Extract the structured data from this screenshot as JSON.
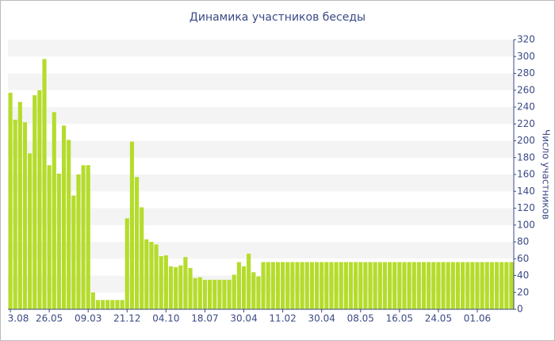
{
  "chart_data": {
    "type": "bar",
    "title": "Динамика участников беседы",
    "y_label": "Число участников",
    "categories": [
      "3.08",
      null,
      null,
      null,
      null,
      null,
      null,
      null,
      "26.05",
      null,
      null,
      null,
      null,
      null,
      null,
      null,
      "09.03",
      null,
      null,
      null,
      null,
      null,
      null,
      null,
      "21.12",
      null,
      null,
      null,
      null,
      null,
      null,
      null,
      "04.10",
      null,
      null,
      null,
      null,
      null,
      null,
      null,
      "18.07",
      null,
      null,
      null,
      null,
      null,
      null,
      null,
      "30.04",
      null,
      null,
      null,
      null,
      null,
      null,
      null,
      "11.02",
      null,
      null,
      null,
      null,
      null,
      null,
      null,
      "30.04",
      null,
      null,
      null,
      null,
      null,
      null,
      null,
      "08.05",
      null,
      null,
      null,
      null,
      null,
      null,
      null,
      "16.05",
      null,
      null,
      null,
      null,
      null,
      null,
      null,
      "24.05",
      null,
      null,
      null,
      null,
      null,
      null,
      null,
      "01.06",
      null,
      null,
      null,
      null,
      null,
      null,
      null
    ],
    "values": [
      257,
      225,
      246,
      222,
      185,
      254,
      260,
      297,
      171,
      234,
      161,
      218,
      201,
      135,
      160,
      171,
      171,
      20,
      11,
      11,
      11,
      11,
      11,
      11,
      108,
      199,
      157,
      121,
      83,
      80,
      77,
      63,
      64,
      51,
      50,
      52,
      62,
      49,
      37,
      38,
      35,
      35,
      35,
      35,
      35,
      35,
      41,
      56,
      51,
      66,
      44,
      39,
      56,
      56,
      56,
      56,
      56,
      56,
      56,
      56,
      56,
      56,
      56,
      56,
      56,
      56,
      56,
      56,
      56,
      56,
      56,
      56,
      56,
      56,
      56,
      56,
      56,
      56,
      56,
      56,
      56,
      56,
      56,
      56,
      56,
      56,
      56,
      56,
      56,
      56,
      56,
      56,
      56,
      56,
      56,
      56,
      56,
      56,
      56,
      56,
      56,
      56,
      56,
      56
    ],
    "color": "#b5dc2c",
    "ylim": [
      0,
      320
    ],
    "yticks": [
      0,
      20,
      40,
      60,
      80,
      100,
      120,
      140,
      160,
      180,
      200,
      220,
      240,
      260,
      280,
      300,
      320
    ],
    "grid": true
  }
}
